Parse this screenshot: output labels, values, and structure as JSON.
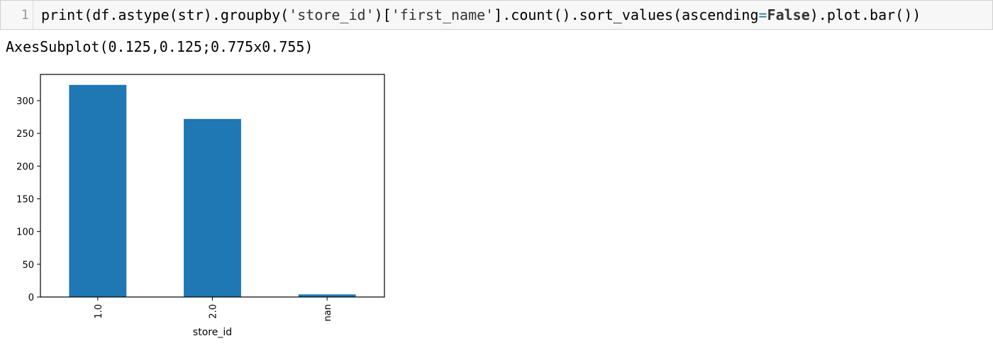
{
  "input_cell": {
    "line_number": "1",
    "code_parts": {
      "a": "print(df.astype(str).groupby(",
      "s1": "'store_id'",
      "b": ")[",
      "s2": "'first_name'",
      "c": "].count().sort_values(ascending",
      "eq": "=",
      "kw": "False",
      "d": ").plot.bar())"
    }
  },
  "output": {
    "text": "AxesSubplot(0.125,0.125;0.775x0.755)"
  },
  "chart_data": {
    "type": "bar",
    "categories": [
      "1.0",
      "2.0",
      "nan"
    ],
    "values": [
      324,
      272,
      4
    ],
    "xlabel": "store_id",
    "ylabel": "",
    "ylim": [
      0,
      340
    ],
    "yticks": [
      0,
      50,
      100,
      150,
      200,
      250,
      300
    ],
    "bar_color": "#1f77b4",
    "grid": false,
    "legend": false
  }
}
